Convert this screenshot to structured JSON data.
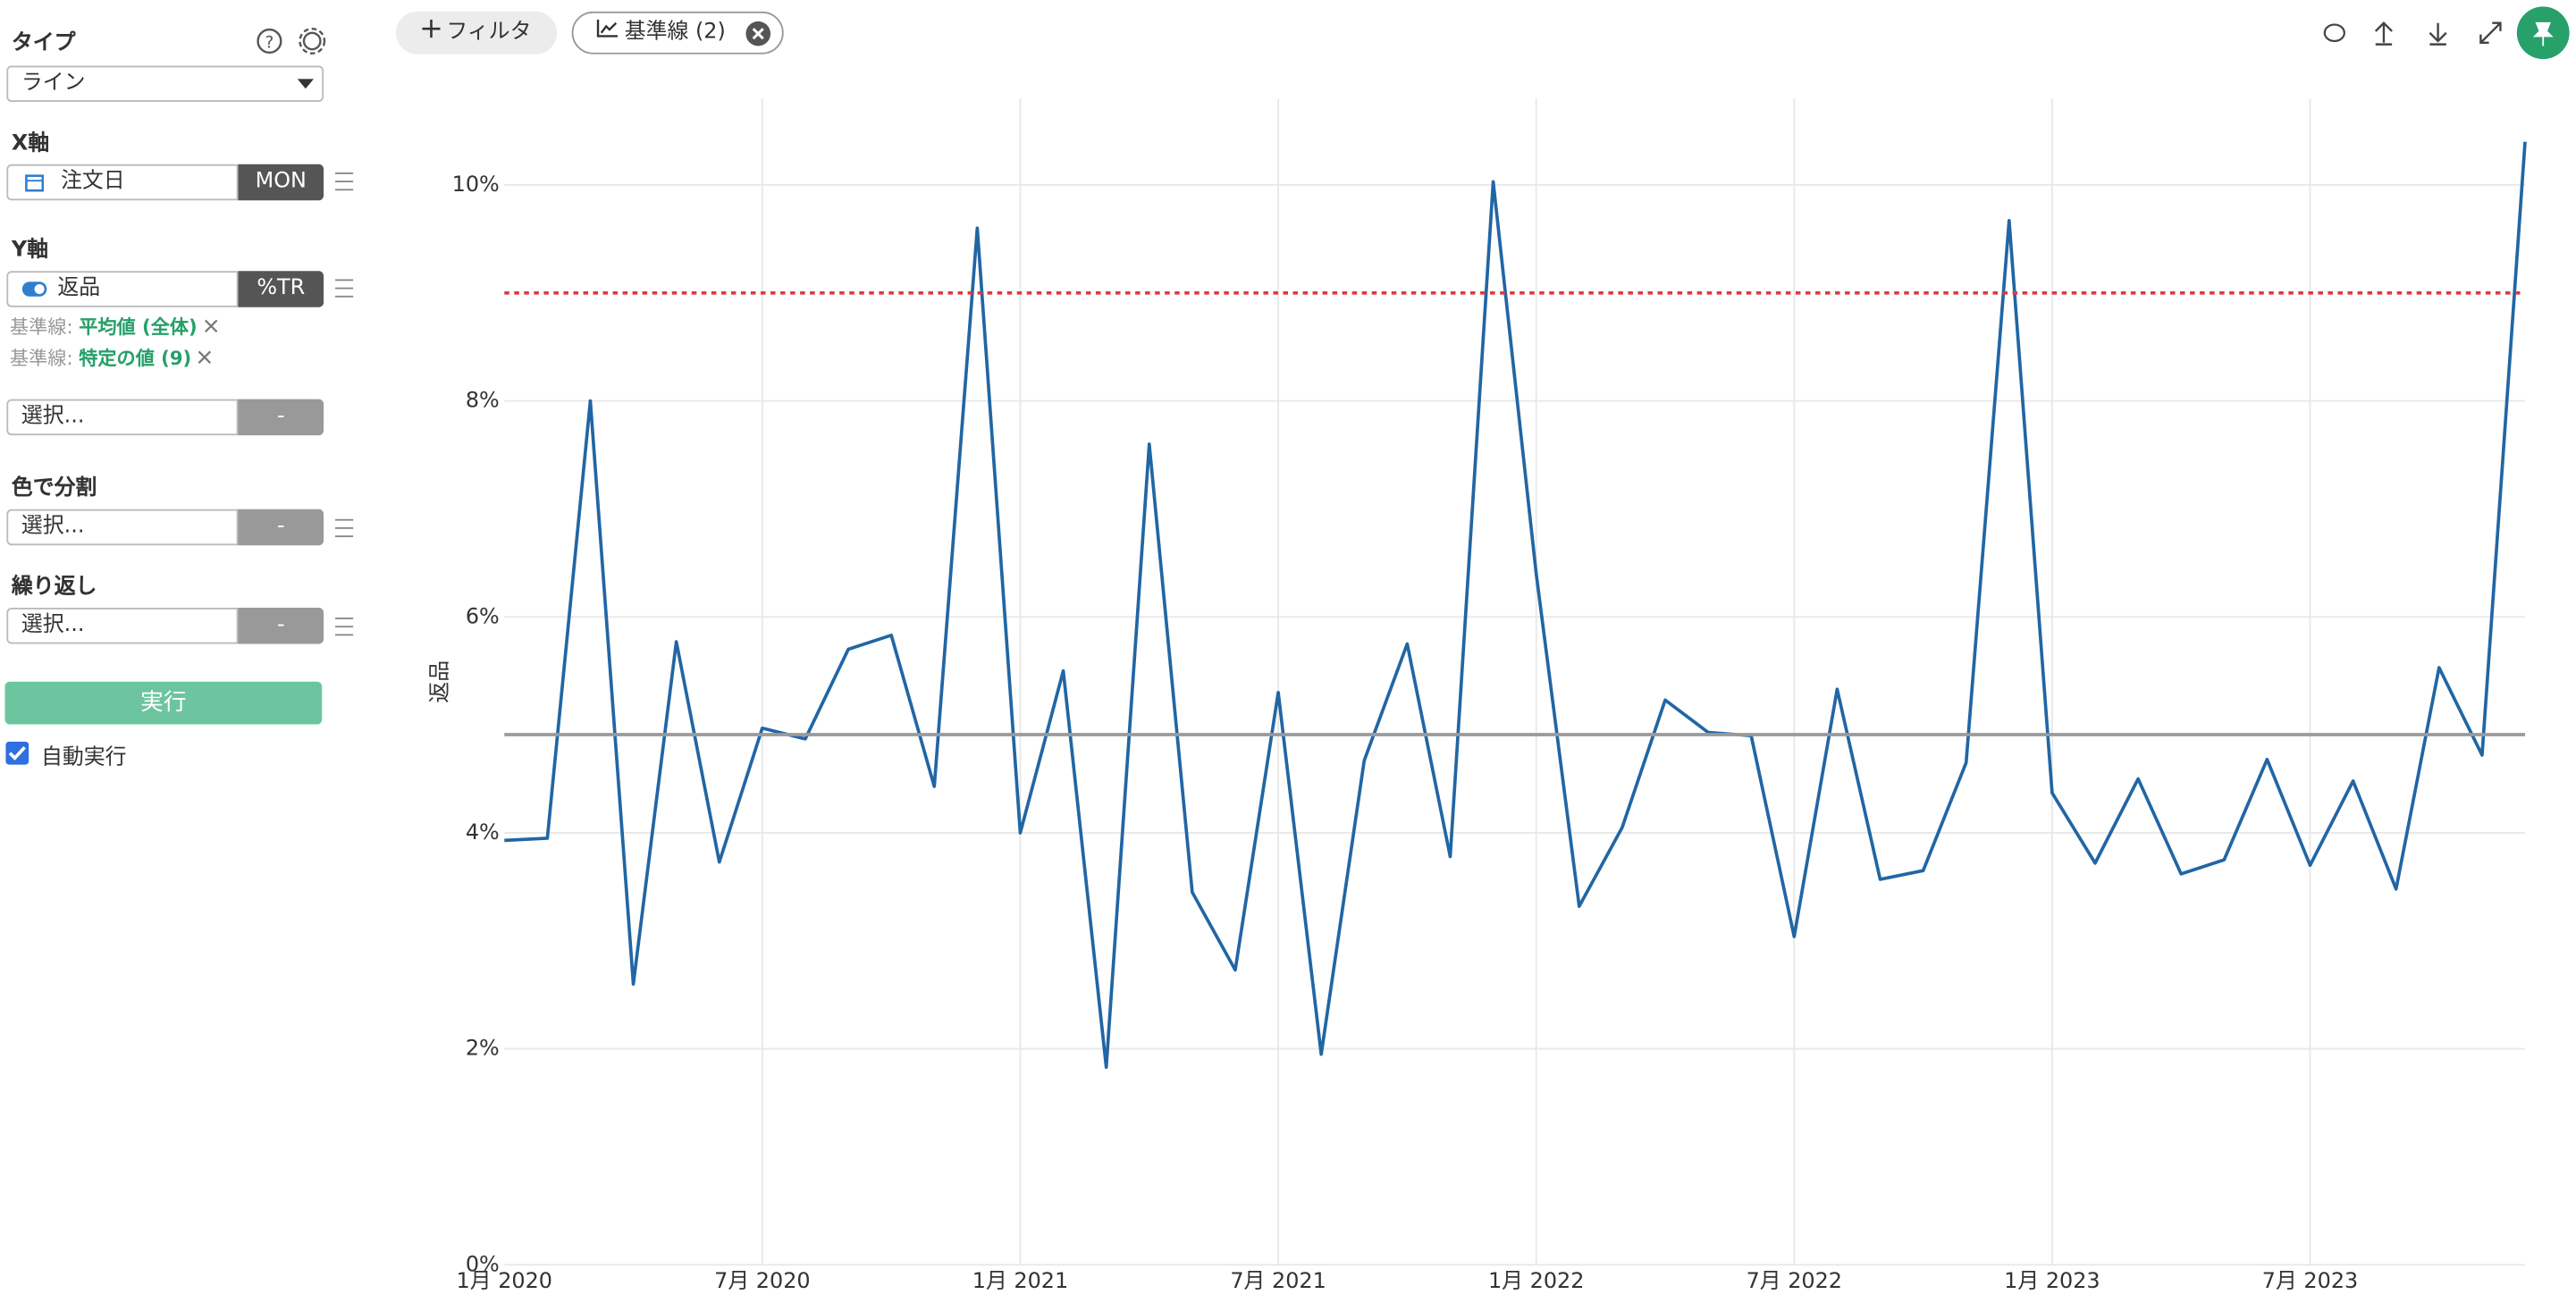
{
  "sidebar": {
    "type_label": "タイプ",
    "type_value": "ライン",
    "x_axis_label": "X軸",
    "x_field": "注文日",
    "x_agg": "MON",
    "y_axis_label": "Y軸",
    "y_field": "返品",
    "y_agg": "%TR",
    "ref_lines": [
      {
        "prefix": "基準線:",
        "name": "平均値 (全体)"
      },
      {
        "prefix": "基準線:",
        "name": "特定の値 (9)"
      }
    ],
    "extra_select": "選択...",
    "extra_agg": "-",
    "color_label": "色で分割",
    "color_select": "選択...",
    "color_agg": "-",
    "repeat_label": "繰り返し",
    "repeat_select": "選択...",
    "repeat_agg": "-",
    "run_button": "実行",
    "auto_run": "自動実行"
  },
  "toolbar": {
    "filter": "フィルタ",
    "reference": "基準線 (2)"
  },
  "chart_data": {
    "type": "line",
    "y_label": "返品",
    "categories": [
      "1月 2020",
      null,
      null,
      null,
      null,
      null,
      "7月 2020",
      null,
      null,
      null,
      null,
      null,
      "1月 2021",
      null,
      null,
      null,
      null,
      null,
      "7月 2021",
      null,
      null,
      null,
      null,
      null,
      "1月 2022",
      null,
      null,
      null,
      null,
      null,
      "7月 2022",
      null,
      null,
      null,
      null,
      null,
      "1月 2023",
      null,
      null,
      null,
      null,
      null,
      "7月 2023",
      null,
      null,
      null,
      null,
      null
    ],
    "series": [
      {
        "color": "#2166a4",
        "values": [
          3.93,
          3.95,
          8.0,
          2.6,
          5.77,
          3.73,
          4.97,
          4.87,
          5.7,
          5.83,
          4.43,
          9.6,
          4.0,
          5.5,
          1.83,
          7.6,
          3.45,
          2.73,
          5.3,
          1.95,
          4.67,
          5.75,
          3.78,
          10.03,
          6.4,
          3.32,
          4.05,
          5.23,
          4.93,
          4.9,
          3.04,
          5.33,
          3.57,
          3.65,
          4.65,
          9.67,
          4.37,
          3.72,
          4.5,
          3.62,
          3.75,
          4.68,
          3.7,
          4.48,
          3.48,
          5.53,
          4.72,
          10.4
        ]
      }
    ],
    "reference_lines": [
      {
        "value": 4.91,
        "color": "#9a9a9a",
        "style": "solid"
      },
      {
        "value": 9,
        "color": "#e0383e",
        "style": "dotted"
      }
    ],
    "ylim": [
      0,
      10.8
    ],
    "yticks": [
      {
        "value": 0,
        "label": "0%"
      },
      {
        "value": 2,
        "label": "2%"
      },
      {
        "value": 4,
        "label": "4%"
      },
      {
        "value": 6,
        "label": "6%"
      },
      {
        "value": 8,
        "label": "8%"
      },
      {
        "value": 10,
        "label": "10%"
      }
    ],
    "grid": true
  }
}
